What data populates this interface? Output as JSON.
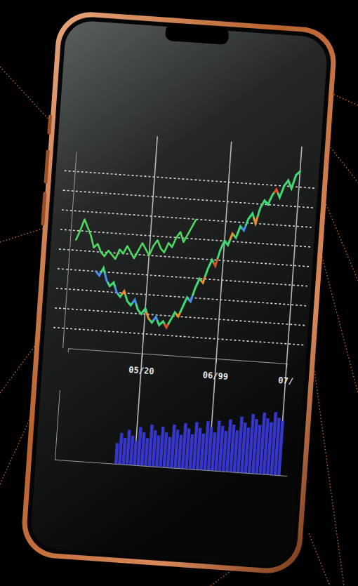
{
  "chart_data": [
    {
      "type": "line",
      "categories": [
        null,
        null,
        null,
        null,
        null,
        null,
        null,
        null,
        null,
        null,
        null,
        null,
        null,
        null,
        null,
        null,
        null,
        null,
        null,
        null,
        "05/20",
        null,
        null,
        null,
        null,
        null,
        null,
        null,
        null,
        null,
        null,
        null,
        null,
        null,
        null,
        null,
        null,
        null,
        null,
        null,
        "06/99",
        null,
        null,
        null,
        null,
        null,
        null,
        null,
        null,
        null,
        null,
        null,
        null,
        null,
        null,
        null,
        null,
        null,
        null,
        "07/"
      ],
      "series": [
        {
          "type": "line",
          "color": "#4fd860",
          "values": [
            55,
            60,
            66,
            62,
            58,
            52,
            54,
            50,
            48,
            51,
            49,
            47,
            52,
            50,
            54,
            51,
            48,
            52,
            56,
            53,
            50,
            55,
            58,
            54,
            52,
            57,
            55,
            60,
            63,
            58,
            62,
            66,
            70,
            null,
            null,
            null,
            null,
            null,
            null,
            null,
            null,
            null,
            null,
            null,
            null,
            null,
            null,
            null,
            null,
            null,
            null,
            null,
            null,
            null,
            null,
            null,
            null,
            null,
            null,
            null
          ]
        },
        {
          "type": "line",
          "colors": [
            null,
            null,
            null,
            null,
            null,
            null,
            "#4a90e8",
            "#4a90e8",
            "#3fd873",
            "#4a90e8",
            "#3fd873",
            "#3fd873",
            "#4a90e8",
            "#3fd873",
            "#e8902a",
            "#3fd873",
            "#3fd873",
            "#4a90e8",
            "#3fd873",
            "#3fd873",
            "#3fd873",
            "#e8902a",
            "#3fd873",
            "#4a90e8",
            "#3fd873",
            "#3fd873",
            "#d8552a",
            "#3fd873",
            "#3fd873",
            "#e8902a",
            "#3fd873",
            "#3fd873",
            "#4a90e8",
            "#3fd873",
            "#3fd873",
            "#e8902a",
            "#3fd873",
            "#3fd873",
            "#d8552a",
            "#3fd873",
            "#3fd873",
            "#3fd873",
            "#e8902a",
            "#3fd873",
            "#3fd873",
            "#4a90e8",
            "#3fd873",
            "#3fd873",
            "#e8902a",
            "#3fd873",
            "#3fd873",
            "#3fd873",
            "#3fd873",
            "#d8552a",
            "#3fd873",
            "#3fd873",
            "#3fd873",
            "#3fd873",
            "#3fd873",
            "#3fd873"
          ],
          "values": [
            null,
            null,
            null,
            null,
            null,
            null,
            40,
            38,
            42,
            36,
            33,
            35,
            30,
            28,
            31,
            26,
            24,
            27,
            22,
            20,
            23,
            18,
            16,
            19,
            15,
            17,
            14,
            18,
            22,
            20,
            25,
            30,
            28,
            35,
            40,
            38,
            45,
            50,
            47,
            55,
            60,
            58,
            64,
            62,
            68,
            66,
            72,
            75,
            70,
            78,
            82,
            80,
            85,
            88,
            84,
            90,
            93,
            89,
            96,
            98
          ]
        }
      ],
      "ylim": [
        0,
        100
      ],
      "yticks": [
        10,
        20,
        30,
        40,
        50,
        60,
        70,
        80,
        90
      ],
      "grid": true,
      "tick_labels": "x"
    },
    {
      "type": "bar",
      "color": "#3636c8",
      "values": [
        null,
        null,
        null,
        null,
        null,
        null,
        null,
        null,
        null,
        null,
        null,
        null,
        null,
        null,
        null,
        30,
        45,
        38,
        50,
        42,
        35,
        55,
        48,
        40,
        60,
        52,
        45,
        58,
        50,
        44,
        62,
        55,
        48,
        65,
        58,
        50,
        68,
        60,
        52,
        70,
        62,
        55,
        72,
        65,
        58,
        75,
        68,
        60,
        80,
        72,
        65,
        85,
        78,
        70,
        88,
        80,
        75,
        90,
        82,
        78
      ],
      "ylim": [
        0,
        100
      ],
      "tick_labels": false
    }
  ]
}
